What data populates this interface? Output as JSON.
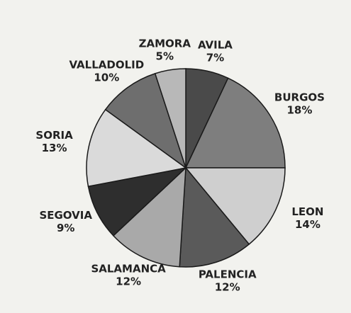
{
  "chart_data": {
    "type": "pie",
    "categories": [
      "AVILA",
      "BURGOS",
      "LEON",
      "PALENCIA",
      "SALAMANCA",
      "SEGOVIA",
      "SORIA",
      "VALLADOLID",
      "ZAMORA"
    ],
    "values": [
      7,
      18,
      14,
      12,
      12,
      9,
      13,
      10,
      5
    ],
    "value_labels": [
      "7%",
      "18%",
      "14%",
      "12%",
      "12%",
      "9%",
      "13%",
      "10%",
      "5%"
    ],
    "colors": [
      "#4a4a4a",
      "#7e7e7e",
      "#cfcfcf",
      "#5a5a5a",
      "#a9a9a9",
      "#2e2e2e",
      "#dadada",
      "#6e6e6e",
      "#b8b8b8"
    ]
  }
}
